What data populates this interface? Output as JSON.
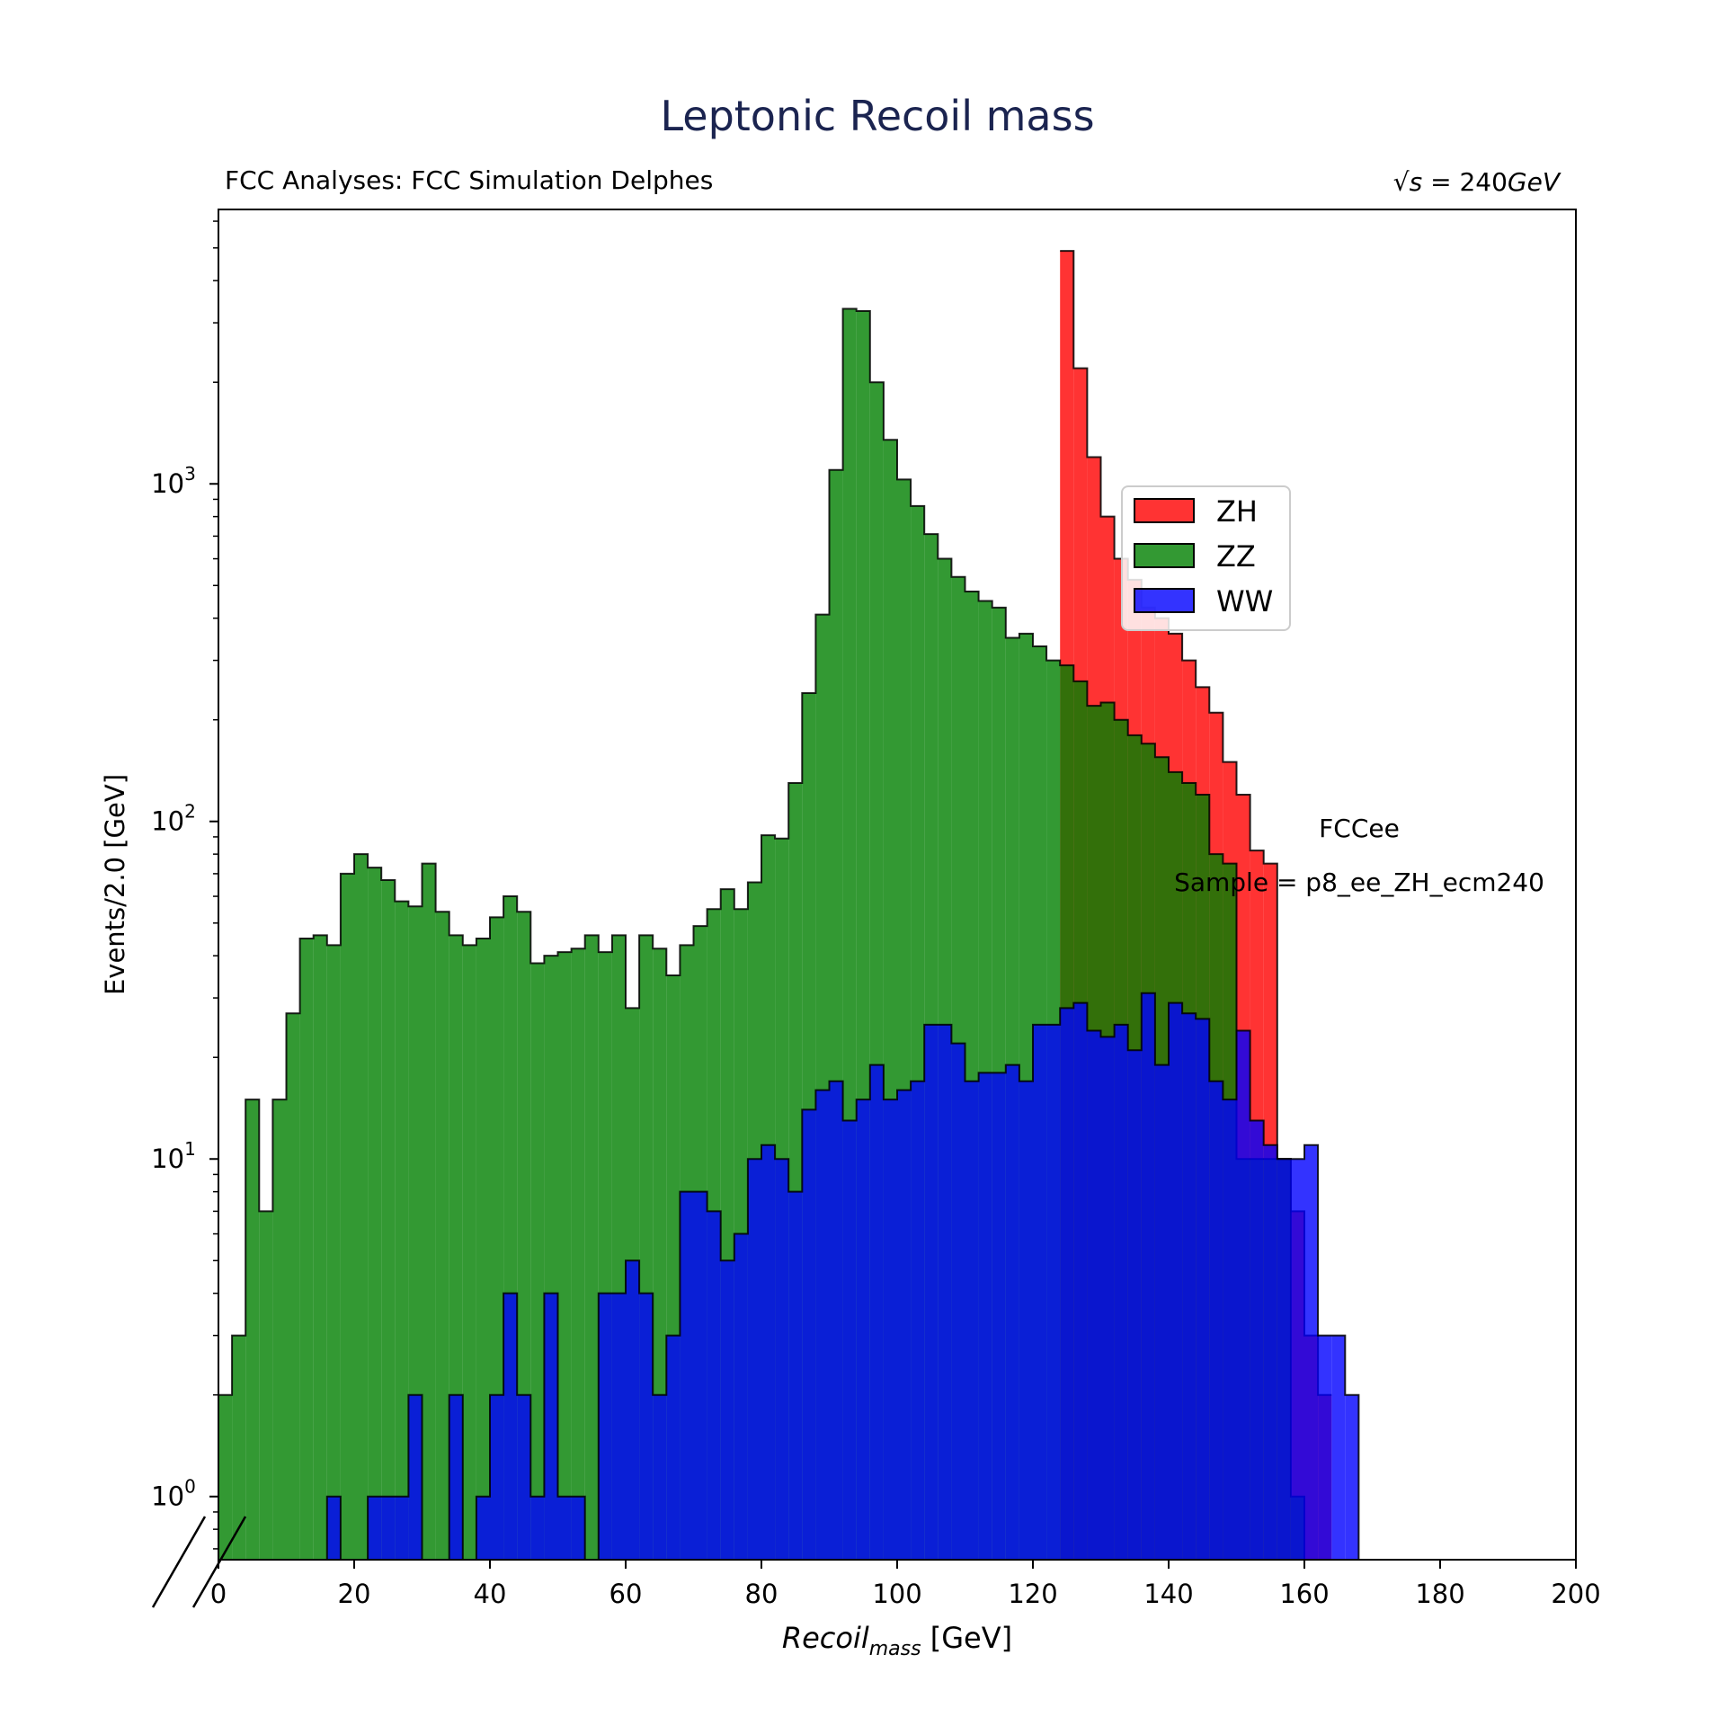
{
  "chart_data": {
    "type": "histogram",
    "title": "Leptonic Recoil mass",
    "header_left": "FCC Analyses: FCC Simulation Delphes",
    "header_right": {
      "sqrt": "√",
      "s": "s",
      "eq": " = 240",
      "unit": "GeV"
    },
    "xlabel": {
      "main": "Recoil",
      "sub": "mass",
      "unit": " [GeV]"
    },
    "ylabel": "Events/2.0 [GeV]",
    "xlim": [
      0,
      200
    ],
    "ylim": [
      0.65,
      6500
    ],
    "yscale": "log",
    "x_ticks": [
      0,
      20,
      40,
      60,
      80,
      100,
      120,
      140,
      160,
      180,
      200
    ],
    "x_tick_labels": [
      "0",
      "20",
      "40",
      "60",
      "80",
      "100",
      "120",
      "140",
      "160",
      "180",
      "200"
    ],
    "y_ticks": [
      1,
      10,
      100,
      1000
    ],
    "y_tick_labels": [
      {
        "base": "10",
        "exp": "0"
      },
      {
        "base": "10",
        "exp": "1"
      },
      {
        "base": "10",
        "exp": "2"
      },
      {
        "base": "10",
        "exp": "3"
      }
    ],
    "bin_start": 0,
    "bin_width": 2,
    "legend_position": "upper-right",
    "annotations": [
      "FCCee",
      "Sample = p8_ee_ZH_ecm240"
    ],
    "series": [
      {
        "name": "ZZ",
        "color": "#008000",
        "values": [
          2,
          3,
          15,
          7,
          15,
          27,
          45,
          46,
          43,
          70,
          80,
          73,
          67,
          58,
          56,
          75,
          54,
          46,
          43,
          45,
          52,
          60,
          54,
          38,
          40,
          41,
          42,
          46,
          41,
          46,
          28,
          46,
          42,
          35,
          43,
          49,
          55,
          63,
          55,
          66,
          91,
          89,
          130,
          240,
          410,
          1100,
          3300,
          3250,
          2000,
          1350,
          1030,
          860,
          710,
          600,
          530,
          480,
          450,
          430,
          350,
          360,
          330,
          300,
          290,
          260,
          220,
          225,
          200,
          180,
          170,
          155,
          140,
          130,
          120,
          80,
          75,
          10,
          10,
          10,
          10,
          1,
          0,
          0,
          0,
          0,
          0,
          0,
          0,
          0,
          0,
          0,
          0,
          0,
          0,
          0,
          0,
          0,
          0,
          0,
          0,
          0
        ]
      },
      {
        "name": "ZH",
        "color": "#ff0000",
        "values": [
          0,
          0,
          0,
          0,
          0,
          0,
          0,
          0,
          0,
          0,
          0,
          0,
          0,
          0,
          0,
          0,
          0,
          0,
          0,
          0,
          0,
          0,
          0,
          0,
          0,
          0,
          0,
          0,
          0,
          0,
          0,
          0,
          0,
          0,
          0,
          0,
          0,
          0,
          0,
          0,
          0,
          0,
          0,
          0,
          0,
          0,
          0,
          0,
          0,
          0,
          0,
          0,
          0,
          0,
          0,
          0,
          0,
          0,
          0,
          0,
          0,
          0,
          0,
          0,
          0,
          0,
          0,
          0,
          0,
          0,
          0,
          0,
          0,
          0,
          0,
          0,
          0,
          0,
          0,
          0,
          0,
          0,
          0,
          0,
          0,
          0,
          0,
          0,
          0,
          0,
          0,
          0,
          0,
          0,
          0,
          0,
          0,
          0,
          0,
          0,
          0,
          0
        ]
      },
      {
        "name": "WW",
        "color": "#0000ff",
        "values": [
          0,
          0,
          0,
          0,
          0,
          0,
          0,
          0,
          1,
          0,
          0,
          1,
          1,
          1,
          2,
          0,
          0,
          2,
          0,
          1,
          2,
          4,
          2,
          1,
          4,
          1,
          1,
          0,
          4,
          4,
          5,
          4,
          2,
          3,
          8,
          8,
          7,
          5,
          6,
          10,
          11,
          10,
          8,
          14,
          16,
          17,
          13,
          15,
          19,
          15,
          16,
          17,
          25,
          25,
          22,
          17,
          18,
          18,
          19,
          17,
          25,
          25,
          28,
          29,
          24,
          23,
          25,
          21,
          31,
          19,
          29,
          27,
          26,
          17,
          15,
          24,
          13,
          11,
          10,
          10,
          11,
          3,
          3,
          2,
          0,
          0,
          0,
          0,
          0,
          0,
          0,
          0,
          0,
          0,
          0,
          0,
          0,
          0,
          0,
          0,
          0,
          0
        ]
      }
    ],
    "overlay": {
      "name": "ZH",
      "color": "#ff0000",
      "start_bin": 62,
      "values": [
        4900,
        2200,
        1200,
        800,
        600,
        520,
        430,
        400,
        360,
        300,
        250,
        210,
        150,
        120,
        82,
        75,
        10,
        7,
        3,
        2
      ]
    }
  }
}
